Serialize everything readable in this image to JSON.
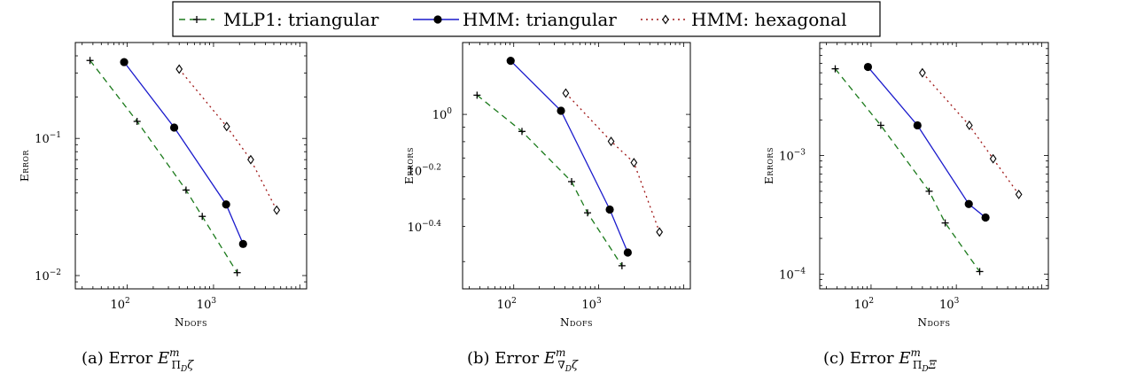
{
  "legend": {
    "entries": [
      {
        "label": "MLP1: triangular",
        "color": "#1b7a1b",
        "dash": "7,5",
        "marker": "plus"
      },
      {
        "label": "HMM: triangular",
        "color": "#1a1acc",
        "dash": "",
        "marker": "circle"
      },
      {
        "label": "HMM: hexagonal",
        "color": "#a01818",
        "dash": "2,4",
        "marker": "diamond"
      }
    ]
  },
  "chart_data": [
    {
      "type": "line",
      "xscale": "log",
      "yscale": "log",
      "xlim": [
        25,
        12000
      ],
      "ylim": [
        0.008,
        0.5
      ],
      "xlabel": "Ndofs",
      "ylabel": "Error",
      "xticks": [
        {
          "value": 100,
          "base": "10",
          "exp": "2"
        },
        {
          "value": 1000,
          "base": "10",
          "exp": "3"
        }
      ],
      "yticks": [
        {
          "value": 0.1,
          "base": "10",
          "exp": "−1"
        },
        {
          "value": 0.01,
          "base": "10",
          "exp": "−2"
        }
      ],
      "caption": {
        "prefix": "(a) Error ",
        "sym": "E",
        "sup": "m",
        "sub": "Π",
        "subsub": "D",
        "tail": "ζ"
      },
      "series": [
        {
          "x": [
            37,
            130,
            480,
            740,
            1880
          ],
          "y": [
            0.37,
            0.133,
            0.042,
            0.027,
            0.0105
          ]
        },
        {
          "x": [
            92,
            350,
            1400,
            2200
          ],
          "y": [
            0.36,
            0.12,
            0.033,
            0.017
          ]
        },
        {
          "x": [
            400,
            1420,
            2700,
            5400
          ],
          "y": [
            0.32,
            0.122,
            0.07,
            0.03
          ]
        }
      ]
    },
    {
      "type": "line",
      "xscale": "log",
      "yscale": "log",
      "xlim": [
        25,
        12000
      ],
      "ylim": [
        0.24,
        1.8
      ],
      "xlabel": "Ndofs",
      "ylabel": "Errors",
      "xticks": [
        {
          "value": 100,
          "base": "10",
          "exp": "2"
        },
        {
          "value": 1000,
          "base": "10",
          "exp": "3"
        }
      ],
      "yticks": [
        {
          "value": 1,
          "base": "10",
          "exp": "0"
        },
        {
          "value": 0.631,
          "base": "10",
          "exp": "−0.2"
        },
        {
          "value": 0.398,
          "base": "10",
          "exp": "−0.4"
        }
      ],
      "caption": {
        "prefix": "(b) Error ",
        "sym": "E",
        "sup": "m",
        "sub": "∇",
        "subsub": "D",
        "tail": "ζ"
      },
      "series": [
        {
          "x": [
            37,
            125,
            480,
            740,
            1880
          ],
          "y": [
            1.17,
            0.87,
            0.577,
            0.447,
            0.29
          ]
        },
        {
          "x": [
            92,
            360,
            1350,
            2200
          ],
          "y": [
            1.55,
            1.03,
            0.459,
            0.323
          ]
        },
        {
          "x": [
            410,
            1400,
            2600,
            5200
          ],
          "y": [
            1.19,
            0.802,
            0.674,
            0.382
          ]
        }
      ]
    },
    {
      "type": "line",
      "xscale": "log",
      "yscale": "log",
      "xlim": [
        25,
        12000
      ],
      "ylim": [
        7.5e-05,
        0.009
      ],
      "xlabel": "Ndofs",
      "ylabel": "Errors",
      "xticks": [
        {
          "value": 100,
          "base": "10",
          "exp": "2"
        },
        {
          "value": 1000,
          "base": "10",
          "exp": "3"
        }
      ],
      "yticks": [
        {
          "value": 0.001,
          "base": "10",
          "exp": "−3"
        },
        {
          "value": 0.0001,
          "base": "10",
          "exp": "−4"
        }
      ],
      "caption": {
        "prefix": "(c) Error ",
        "sym": "E",
        "sup": "m",
        "sub": "Π",
        "subsub": "D",
        "tail": "Ξ"
      },
      "series": [
        {
          "x": [
            38,
            130,
            480,
            740,
            1880
          ],
          "y": [
            0.0054,
            0.0018,
            0.0005,
            0.00027,
            0.000105
          ]
        },
        {
          "x": [
            92,
            350,
            1400,
            2200
          ],
          "y": [
            0.0056,
            0.0018,
            0.00039,
            0.0003
          ]
        },
        {
          "x": [
            400,
            1420,
            2700,
            5400
          ],
          "y": [
            0.005,
            0.0018,
            0.00094,
            0.00047
          ]
        }
      ]
    }
  ]
}
